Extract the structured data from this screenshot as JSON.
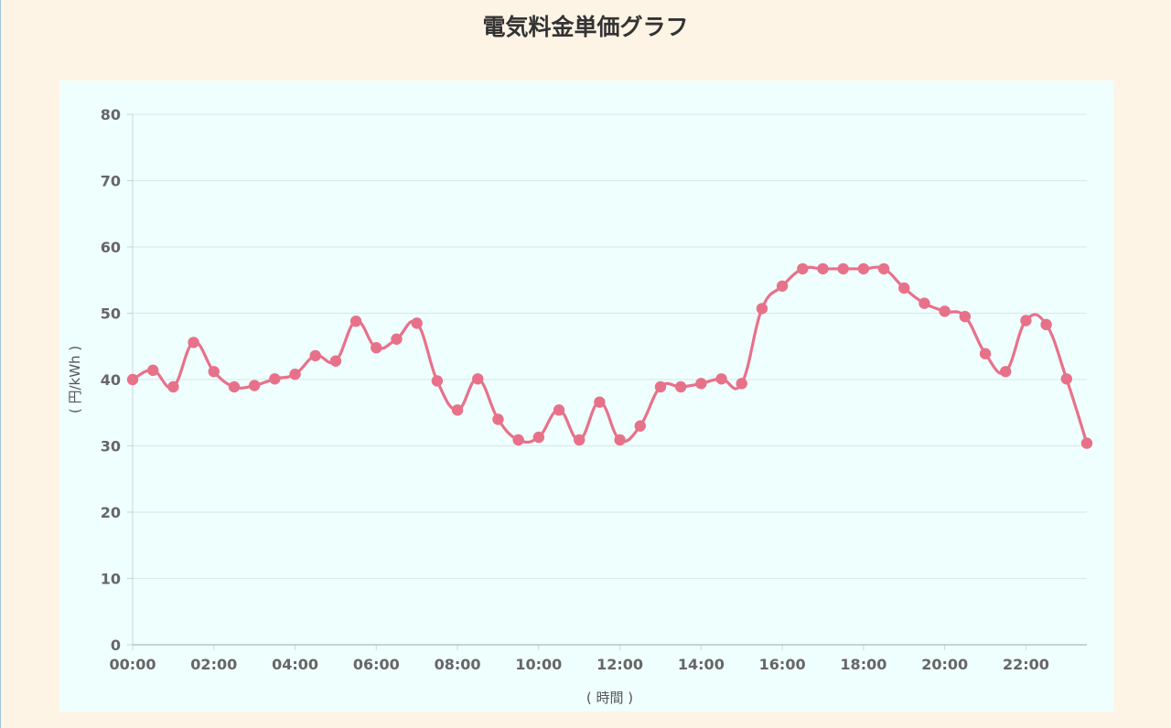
{
  "page": {
    "title": "電気料金単価グラフ"
  },
  "colors": {
    "line": "#e8718a",
    "grid": "#dde9ea",
    "background": "#fdf4e6",
    "panel": "#effffe"
  },
  "chart_data": {
    "type": "line",
    "title": "電気料金単価グラフ",
    "xlabel": "( 時間 )",
    "ylabel": "( 円/kWh )",
    "ylim": [
      0,
      80
    ],
    "yticks": [
      0,
      10,
      20,
      30,
      40,
      50,
      60,
      70,
      80
    ],
    "xticks": [
      "00:00",
      "02:00",
      "04:00",
      "06:00",
      "08:00",
      "10:00",
      "12:00",
      "14:00",
      "16:00",
      "18:00",
      "20:00",
      "22:00"
    ],
    "grid": true,
    "x": [
      "00:00",
      "00:30",
      "01:00",
      "01:30",
      "02:00",
      "02:30",
      "03:00",
      "03:30",
      "04:00",
      "04:30",
      "05:00",
      "05:30",
      "06:00",
      "06:30",
      "07:00",
      "07:30",
      "08:00",
      "08:30",
      "09:00",
      "09:30",
      "10:00",
      "10:30",
      "11:00",
      "11:30",
      "12:00",
      "12:30",
      "13:00",
      "13:30",
      "14:00",
      "14:30",
      "15:00",
      "15:30",
      "16:00",
      "16:30",
      "17:00",
      "17:30",
      "18:00",
      "18:30",
      "19:00",
      "19:30",
      "20:00",
      "20:30",
      "21:00",
      "21:30",
      "22:00",
      "22:30",
      "23:00",
      "23:30"
    ],
    "values": [
      40.0,
      41.4,
      38.9,
      45.6,
      41.2,
      38.9,
      39.1,
      40.1,
      40.8,
      43.6,
      42.8,
      48.8,
      44.8,
      46.1,
      48.5,
      39.8,
      35.4,
      40.1,
      34.0,
      30.9,
      31.3,
      35.4,
      30.9,
      36.6,
      30.9,
      33.0,
      38.9,
      38.9,
      39.4,
      40.1,
      39.4,
      50.7,
      54.1,
      56.7,
      56.7,
      56.7,
      56.7,
      56.7,
      53.8,
      51.5,
      50.3,
      49.5,
      43.9,
      41.2,
      48.9,
      48.3,
      40.1,
      30.4
    ]
  }
}
